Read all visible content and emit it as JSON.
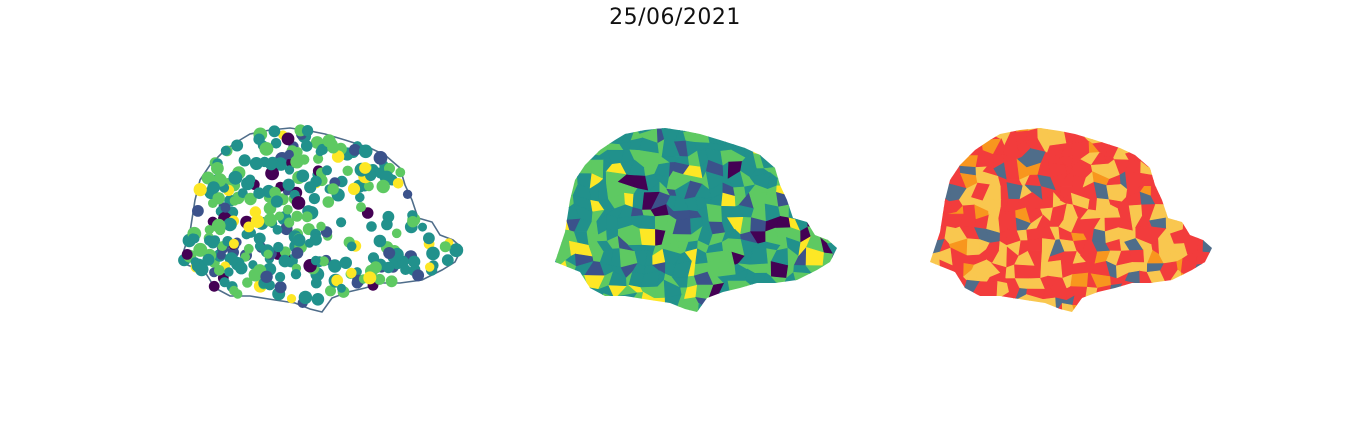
{
  "figure": {
    "title": "25/06/2021"
  },
  "colors": {
    "viridis": [
      "#440154",
      "#3b528b",
      "#21918c",
      "#5ec962",
      "#fde725"
    ],
    "outline": "#4f6d8a",
    "categories": [
      "#f23c3c",
      "#f9c74f",
      "#f8961e",
      "#4f6d8a"
    ]
  },
  "maps": [
    {
      "kind": "proportional-points",
      "colormap": "viridis",
      "outline": true
    },
    {
      "kind": "choropleth",
      "colormap": "viridis"
    },
    {
      "kind": "categorical-choropleth",
      "palette": "categories"
    }
  ]
}
